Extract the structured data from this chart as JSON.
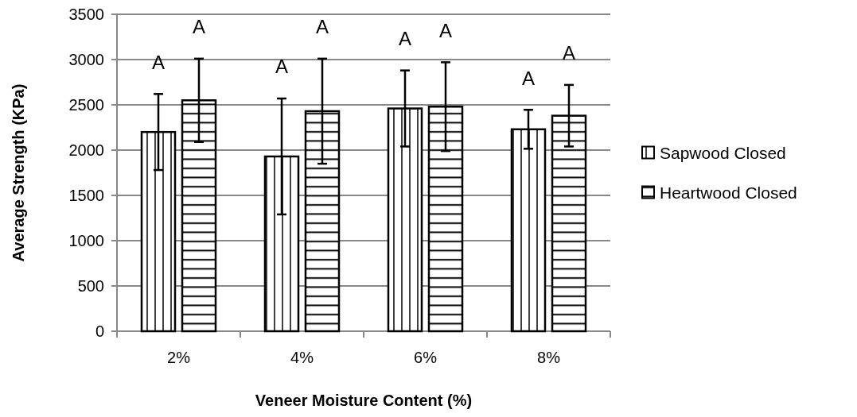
{
  "chart_data": {
    "type": "bar",
    "xlabel": "Veneer Moisture Content (%)",
    "ylabel": "Average Strength (KPa)",
    "categories": [
      "2%",
      "4%",
      "6%",
      "8%"
    ],
    "series": [
      {
        "name": "Sapwood Closed",
        "color": "#000000",
        "values": [
          2200,
          1930,
          2460,
          2230
        ],
        "errors": [
          420,
          640,
          420,
          215
        ]
      },
      {
        "name": "Heartwood Closed",
        "color": "#000000",
        "values": [
          2550,
          2430,
          2480,
          2380
        ],
        "errors": [
          460,
          580,
          490,
          340
        ]
      }
    ],
    "ylim": [
      0,
      3500
    ],
    "yticks": [
      0,
      500,
      1000,
      1500,
      2000,
      2500,
      3000,
      3500
    ],
    "grid": "y",
    "legend": "right",
    "annotations": [
      "A",
      "A",
      "A",
      "A",
      "A",
      "A",
      "A",
      "A"
    ]
  }
}
